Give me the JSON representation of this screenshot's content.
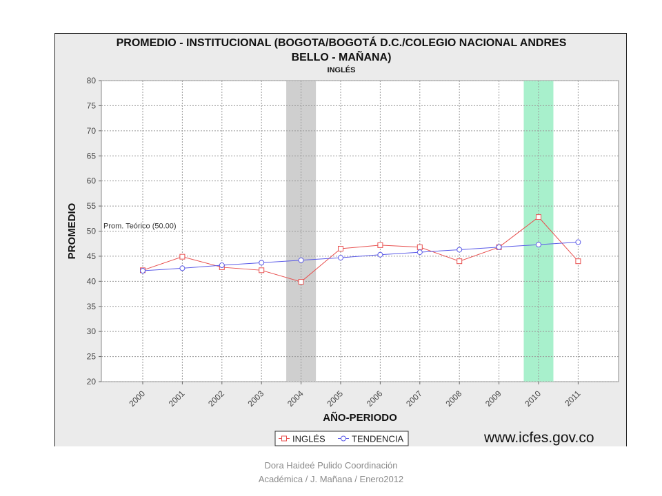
{
  "chart_data": {
    "type": "line",
    "title": "PROMEDIO - INSTITUCIONAL (BOGOTA/BOGOTÁ D.C./COLEGIO NACIONAL ANDRES BELLO - MAÑANA)",
    "title_lines": [
      "PROMEDIO - INSTITUCIONAL (BOGOTA/BOGOTÁ D.C./COLEGIO NACIONAL ANDRES",
      "BELLO - MAÑANA)"
    ],
    "subtitle": "INGLÉS",
    "xlabel": "AÑO-PERIODO",
    "ylabel": "PROMEDIO",
    "categories": [
      "2000",
      "2001",
      "2002",
      "2003",
      "2004",
      "2005",
      "2006",
      "2007",
      "2008",
      "2009",
      "2010",
      "2011"
    ],
    "ylim": [
      20,
      80
    ],
    "yticks": [
      "20",
      "25",
      "30",
      "35",
      "40",
      "45",
      "50",
      "55",
      "60",
      "65",
      "70",
      "75",
      "80"
    ],
    "grid": true,
    "series": [
      {
        "name": "INGLÉS",
        "color": "#e8504f",
        "marker": "square",
        "values": [
          42.2,
          44.9,
          42.8,
          42.2,
          39.9,
          46.5,
          47.2,
          46.8,
          44.0,
          46.8,
          52.8,
          44.0
        ]
      },
      {
        "name": "TENDENCIA",
        "color": "#5a5ae8",
        "marker": "circle",
        "values": [
          42.1,
          42.6,
          43.2,
          43.7,
          44.2,
          44.7,
          45.3,
          45.8,
          46.3,
          46.8,
          47.3,
          47.8
        ]
      }
    ],
    "reference_line": {
      "label": "Prom. Teórico (50.00)",
      "value": 50
    },
    "highlight_bands": [
      {
        "category": "2004",
        "color": "#cfcfcf"
      },
      {
        "category": "2010",
        "color": "#a8f0cc"
      }
    ],
    "legend_position": "bottom-center"
  },
  "source_url": "www.icfes.gov.co",
  "footer": {
    "line1": "Dora Haideé Pulido  Coordinación",
    "line2": "Académica / J. Mañana / Enero2012"
  }
}
